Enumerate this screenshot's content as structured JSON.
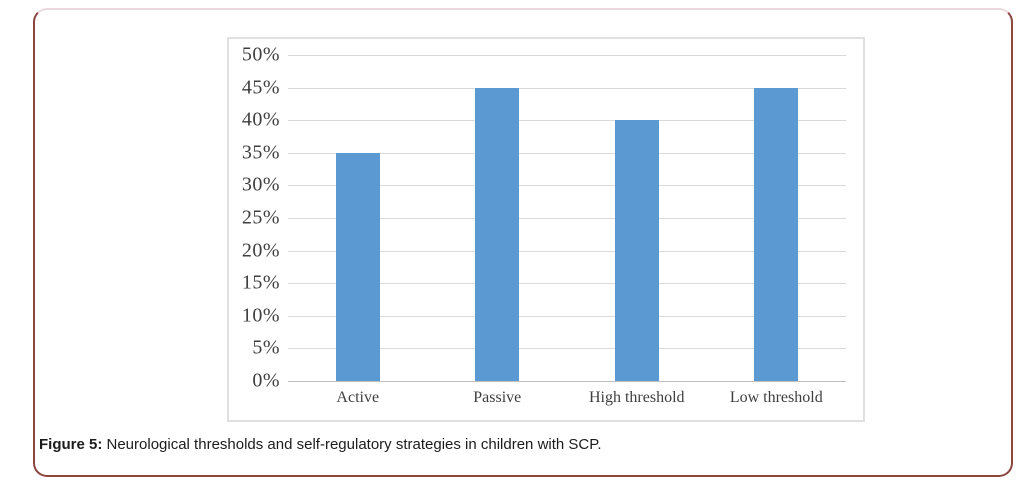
{
  "figure": {
    "caption_label": "Figure 5:",
    "caption_text": " Neurological thresholds and self-regulatory strategies in children with SCP."
  },
  "chart_data": {
    "type": "bar",
    "title": "",
    "xlabel": "",
    "ylabel": "",
    "categories": [
      "Active",
      "Passive",
      "High threshold",
      "Low threshold"
    ],
    "values": [
      35,
      45,
      40,
      45
    ],
    "value_unit": "%",
    "ylim": [
      0,
      50
    ],
    "ytick_step": 5,
    "ytick_labels": [
      "0%",
      "5%",
      "10%",
      "15%",
      "20%",
      "25%",
      "30%",
      "35%",
      "40%",
      "45%",
      "50%"
    ],
    "grid": true,
    "legend": "none",
    "colors": {
      "bar": "#5B99D3",
      "gridline": "#D9D9D9",
      "axis_line": "#BFBFBF",
      "tick_text": "#3F3F3F",
      "chart_border": "#E0E0E0",
      "frame_border": "#8C453F",
      "frame_border_top": "#EAD8DC"
    }
  }
}
